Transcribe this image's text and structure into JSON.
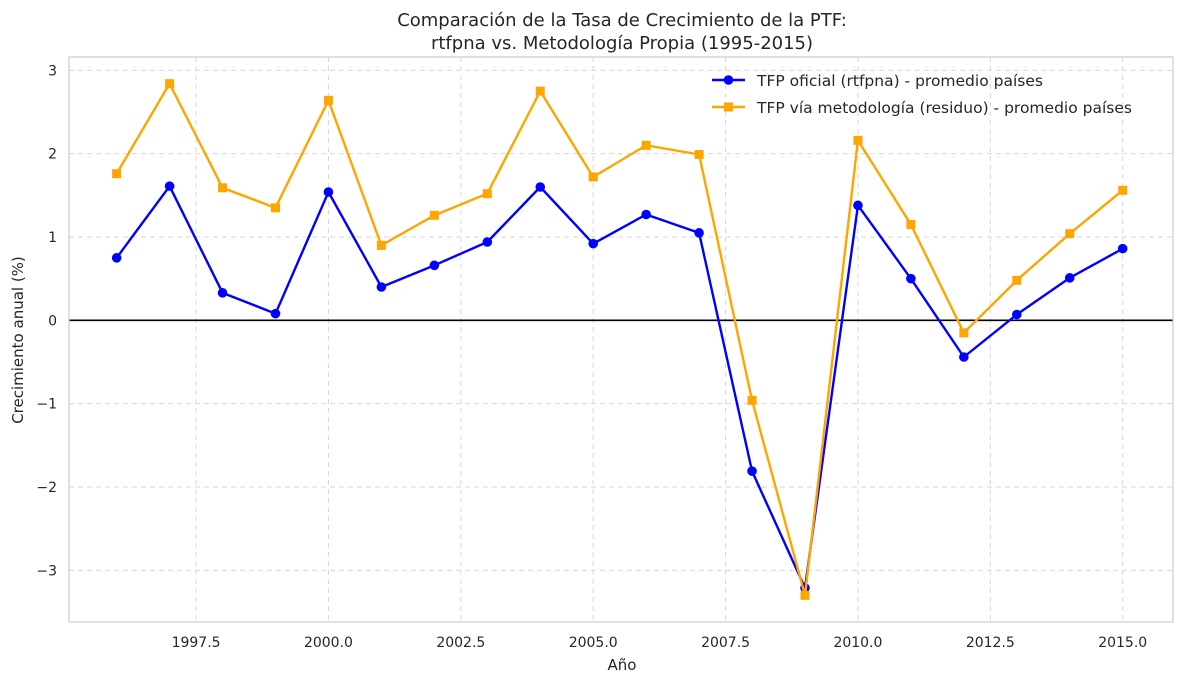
{
  "chart_data": {
    "type": "line",
    "title": "Comparación de la Tasa de Crecimiento de la PTF:",
    "subtitle": "rtfpna vs. Metodología Propia (1995-2015)",
    "xlabel": "Año",
    "ylabel": "Crecimiento anual (%)",
    "xlim": [
      1995.1,
      2015.95
    ],
    "ylim": [
      -3.62,
      3.16
    ],
    "x_ticks": [
      1997.5,
      2000.0,
      2002.5,
      2005.0,
      2007.5,
      2010.0,
      2012.5,
      2015.0
    ],
    "x_tick_labels": [
      "1997.5",
      "2000.0",
      "2002.5",
      "2005.0",
      "2007.5",
      "2010.0",
      "2012.5",
      "2015.0"
    ],
    "y_ticks": [
      3,
      2,
      1,
      0,
      -1,
      -2,
      -3
    ],
    "y_tick_labels": [
      "3",
      "2",
      "1",
      "0",
      "−1",
      "−2",
      "−3"
    ],
    "grid": true,
    "zero_line": true,
    "legend_position": "top-right",
    "x": [
      1996,
      1997,
      1998,
      1999,
      2000,
      2001,
      2002,
      2003,
      2004,
      2005,
      2006,
      2007,
      2008,
      2009,
      2010,
      2011,
      2012,
      2013,
      2014,
      2015
    ],
    "series": [
      {
        "name": "TFP oficial (rtfpna) - promedio países",
        "color": "#0000ff",
        "marker": "circle",
        "values": [
          0.75,
          1.61,
          0.33,
          0.08,
          1.54,
          0.4,
          0.66,
          0.94,
          1.6,
          0.92,
          1.27,
          1.05,
          -1.81,
          -3.21,
          1.38,
          0.5,
          -0.44,
          0.07,
          0.51,
          0.86
        ]
      },
      {
        "name": "TFP vía metodología (residuo) - promedio países",
        "color": "#ffa500",
        "marker": "square",
        "values": [
          1.76,
          2.84,
          1.59,
          1.35,
          2.64,
          0.9,
          1.26,
          1.52,
          2.75,
          1.72,
          2.1,
          1.99,
          -0.96,
          -3.3,
          2.16,
          1.15,
          -0.15,
          0.48,
          1.04,
          1.56
        ]
      }
    ]
  }
}
